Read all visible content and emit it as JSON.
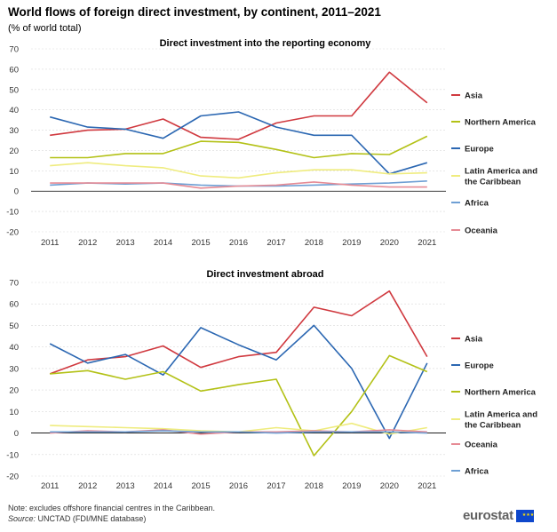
{
  "header": {
    "title": "World flows of foreign direct investment, by continent, 2011–2021",
    "subtitle": "(% of world total)"
  },
  "footer": {
    "note": "Note: excludes offshore financial centres in the Caribbean.",
    "source_label": "Source:",
    "source_text": " UNCTAD (FDI/MNE database)",
    "logo_text": "eurostat",
    "logo_stars": "★★★"
  },
  "chart_data": [
    {
      "type": "line",
      "title": "Direct investment into the reporting economy",
      "xlabel": "",
      "ylabel": "",
      "ylim": [
        -20,
        70
      ],
      "yticks": [
        -20,
        -10,
        0,
        10,
        20,
        30,
        40,
        50,
        60,
        70
      ],
      "categories": [
        "2011",
        "2012",
        "2013",
        "2014",
        "2015",
        "2016",
        "2017",
        "2018",
        "2019",
        "2020",
        "2021"
      ],
      "series": [
        {
          "name": "Asia",
          "color": "#d0393f",
          "values": [
            27.5,
            30,
            30.5,
            35.5,
            26.5,
            25.5,
            33.5,
            37,
            37,
            58.5,
            43.5
          ]
        },
        {
          "name": "Northern America",
          "color": "#b3c116",
          "values": [
            16.5,
            16.5,
            18.5,
            18.5,
            24.5,
            24,
            20.5,
            16.5,
            18.5,
            18,
            27
          ]
        },
        {
          "name": "Europe",
          "color": "#2b67b2",
          "values": [
            36.5,
            31.5,
            30.5,
            26,
            37,
            39,
            31.5,
            27.5,
            27.5,
            8.5,
            14
          ]
        },
        {
          "name": "Latin America and the Caribbean",
          "color": "#efec7f",
          "values": [
            12.5,
            14,
            12.5,
            11.5,
            7.5,
            6.5,
            9,
            10.5,
            10.5,
            8.5,
            9
          ]
        },
        {
          "name": "Africa",
          "color": "#6e9fd4",
          "values": [
            3,
            4,
            3.5,
            4,
            3,
            2.5,
            2.5,
            3,
            3.5,
            4,
            5
          ]
        },
        {
          "name": "Oceania",
          "color": "#e68b95",
          "values": [
            4,
            4,
            4,
            4,
            1.5,
            2.5,
            3,
            4.5,
            3,
            2,
            2
          ]
        }
      ]
    },
    {
      "type": "line",
      "title": "Direct investment abroad",
      "xlabel": "",
      "ylabel": "",
      "ylim": [
        -20,
        70
      ],
      "yticks": [
        -20,
        -10,
        0,
        10,
        20,
        30,
        40,
        50,
        60,
        70
      ],
      "categories": [
        "2011",
        "2012",
        "2013",
        "2014",
        "2015",
        "2016",
        "2017",
        "2018",
        "2019",
        "2020",
        "2021"
      ],
      "series": [
        {
          "name": "Asia",
          "color": "#d0393f",
          "values": [
            27.5,
            34,
            35.5,
            40.5,
            30.5,
            35.5,
            37.5,
            58.5,
            54.5,
            66,
            35.5
          ]
        },
        {
          "name": "Europe",
          "color": "#2b67b2",
          "values": [
            41.5,
            32.5,
            36.5,
            27,
            49,
            41,
            34,
            50,
            30,
            -2.5,
            32.5
          ]
        },
        {
          "name": "Northern America",
          "color": "#b3c116",
          "values": [
            27.5,
            29,
            25,
            28.5,
            19.5,
            22.5,
            25,
            -10.5,
            10,
            36,
            28.5
          ]
        },
        {
          "name": "Latin America and the Caribbean",
          "color": "#efec7f",
          "values": [
            3.5,
            3,
            2.5,
            2,
            1,
            0.5,
            2.5,
            1,
            4.5,
            -0.5,
            2.5
          ]
        },
        {
          "name": "Oceania",
          "color": "#e68b95",
          "values": [
            0,
            1,
            0.5,
            1.5,
            -0.5,
            0.5,
            0.5,
            1,
            0.5,
            1.5,
            0.5
          ]
        },
        {
          "name": "Africa",
          "color": "#6e9fd4",
          "values": [
            0.5,
            0.5,
            0.5,
            1,
            0.5,
            0.5,
            0,
            0.5,
            0.5,
            0.5,
            0
          ]
        }
      ]
    }
  ]
}
